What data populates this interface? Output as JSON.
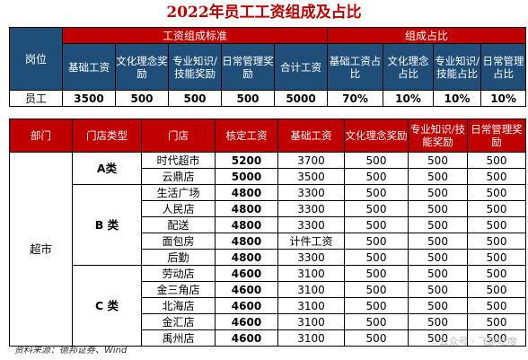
{
  "title": "2022年员工工资组成及占比",
  "top": {
    "col_post": "岗位",
    "group_salary": "工资组成标准",
    "group_ratio": "组成占比",
    "headers": [
      "基础工资",
      "文化理念奖励",
      "专业知识/技能奖励",
      "日常管理奖励",
      "合计工资",
      "基础工资占比",
      "文化理念占比",
      "专业知识/技能占比",
      "日常管理占比"
    ],
    "row_label": "员工",
    "row_values": [
      "3500",
      "500",
      "500",
      "500",
      "5000",
      "70%",
      "10%",
      "10%",
      "10%"
    ]
  },
  "bottom": {
    "headers": [
      "部门",
      "门店类型",
      "门店",
      "核定工资",
      "基础工资",
      "文化理念奖励",
      "专业知识/技能奖励",
      "日常管理奖励"
    ],
    "dept": "超市",
    "groups": [
      {
        "label": "A类",
        "rows": [
          {
            "store": "时代超市",
            "approved": "5200",
            "base": "3700",
            "culture": "500",
            "skill": "500",
            "daily": "500"
          },
          {
            "store": "云鼎店",
            "approved": "5000",
            "base": "3500",
            "culture": "500",
            "skill": "500",
            "daily": "500"
          }
        ]
      },
      {
        "label": "B 类",
        "rows": [
          {
            "store": "生活广场",
            "approved": "4800",
            "base": "3300",
            "culture": "500",
            "skill": "500",
            "daily": "500"
          },
          {
            "store": "人民店",
            "approved": "4800",
            "base": "3300",
            "culture": "500",
            "skill": "500",
            "daily": "500"
          },
          {
            "store": "配送",
            "approved": "4800",
            "base": "3300",
            "culture": "500",
            "skill": "500",
            "daily": "500"
          },
          {
            "store": "面包房",
            "approved": "4800",
            "base": "计件工资",
            "culture": "500",
            "skill": "500",
            "daily": "500"
          },
          {
            "store": "后勤",
            "approved": "4800",
            "base": "3300",
            "culture": "500",
            "skill": "500",
            "daily": "500"
          }
        ]
      },
      {
        "label": "C 类",
        "rows": [
          {
            "store": "劳动店",
            "approved": "4600",
            "base": "3100",
            "culture": "500",
            "skill": "500",
            "daily": "500"
          },
          {
            "store": "金三角店",
            "approved": "4600",
            "base": "3100",
            "culture": "500",
            "skill": "500",
            "daily": "500"
          },
          {
            "store": "北海店",
            "approved": "4600",
            "base": "3100",
            "culture": "500",
            "skill": "500",
            "daily": "500"
          },
          {
            "store": "金汇店",
            "approved": "4600",
            "base": "3100",
            "culture": "500",
            "skill": "500",
            "daily": "500"
          },
          {
            "store": "禹州店",
            "approved": "4600",
            "base": "3100",
            "culture": "500",
            "skill": "500",
            "daily": "500"
          }
        ]
      }
    ]
  },
  "source": "资料来源：德邦证券、Wind",
  "watermark": "公众号 · 飞跑吃度",
  "colors": {
    "red_header": "#c00000",
    "blue_header": "#1f4e79"
  }
}
